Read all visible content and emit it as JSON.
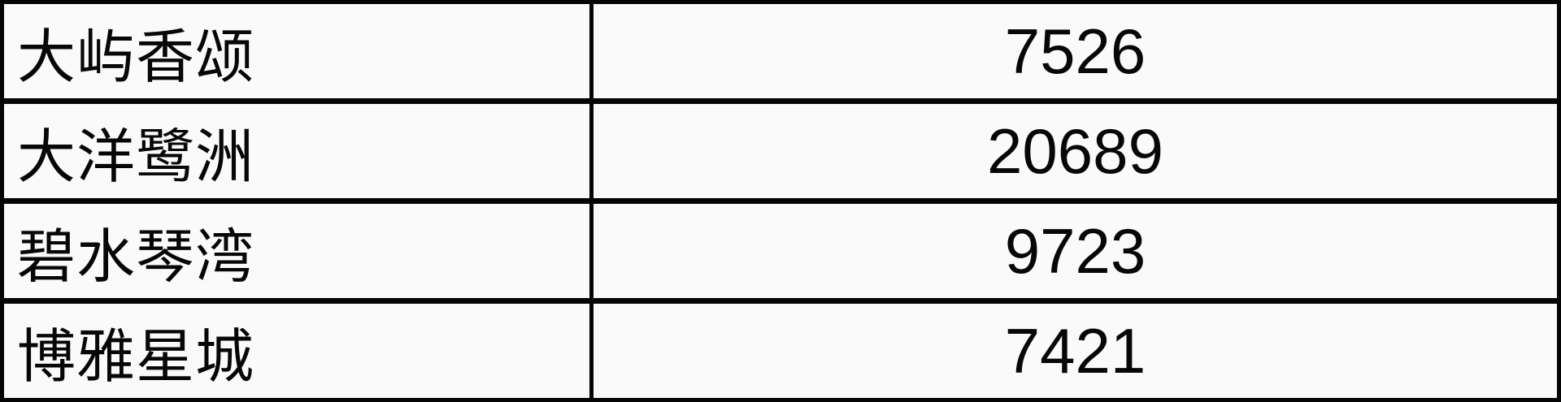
{
  "chart_data": {
    "type": "table",
    "categories": [
      "大屿香颂",
      "大洋鹭洲",
      "碧水琴湾",
      "博雅星城"
    ],
    "values": [
      7526,
      20689,
      9723,
      7421
    ],
    "title": "",
    "notes": "two-column gridded table, no headers visible; names left-aligned, values centered"
  },
  "table": {
    "rows": [
      {
        "name": "大屿香颂",
        "value": "7526"
      },
      {
        "name": "大洋鹭洲",
        "value": "20689"
      },
      {
        "name": "碧水琴湾",
        "value": "9723"
      },
      {
        "name": "博雅星城",
        "value": "7421"
      }
    ]
  },
  "colors": {
    "border": "#050505",
    "cell_background": "#fafafa",
    "text": "#070707"
  }
}
